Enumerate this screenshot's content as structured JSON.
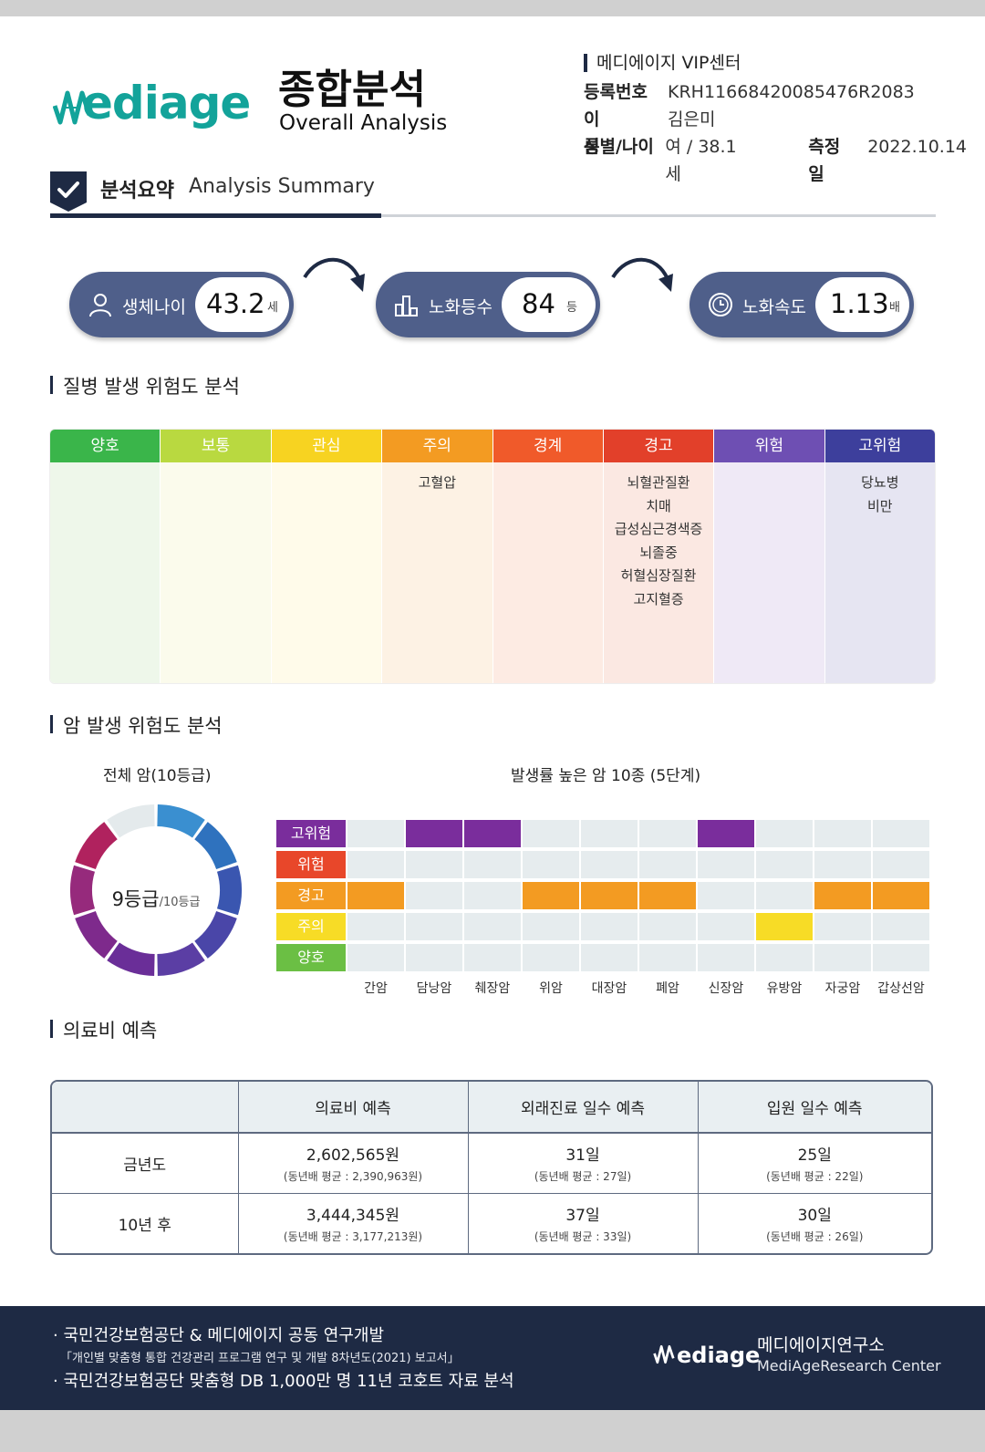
{
  "header": {
    "logo_text": "ediage",
    "title_kr": "종합분석",
    "title_en": "Overall Analysis",
    "center": "메디에이지 VIP센터",
    "reg_label": "등록번호",
    "reg_value": "KRH11668420085476R2083",
    "name_label": "이 름",
    "name_value": "김은미",
    "sexage_label": "성별/나이",
    "sexage_value": "여 / 38.1 세",
    "date_label": "측정일",
    "date_value": "2022.10.14"
  },
  "summary": {
    "title_kr": "분석요약",
    "title_en": "Analysis Summary",
    "bio_age_label": "생체나이",
    "bio_age_value": "43.2",
    "bio_age_unit": "세",
    "grade_label": "노화등수",
    "grade_value": "84",
    "grade_unit": "등",
    "speed_label": "노화속도",
    "speed_value": "1.13",
    "speed_unit": "배"
  },
  "disease": {
    "title": "질병 발생 위험도 분석",
    "columns": [
      {
        "label": "양호",
        "color": "#3ab54a",
        "bg": "#eef7ea",
        "items": []
      },
      {
        "label": "보통",
        "color": "#b9d940",
        "bg": "#fbfbec",
        "items": []
      },
      {
        "label": "관심",
        "color": "#f7d321",
        "bg": "#fffbea",
        "items": []
      },
      {
        "label": "주의",
        "color": "#f39b22",
        "bg": "#fdf2e4",
        "items": [
          "고혈압"
        ]
      },
      {
        "label": "경계",
        "color": "#f05a2a",
        "bg": "#fdebe3",
        "items": []
      },
      {
        "label": "경고",
        "color": "#e2402a",
        "bg": "#fbe8e2",
        "items": [
          "뇌혈관질환",
          "치매",
          "급성심근경색증",
          "뇌졸중",
          "허혈심장질환",
          "고지혈증"
        ]
      },
      {
        "label": "위험",
        "color": "#6e4fb3",
        "bg": "#efe9f6",
        "items": []
      },
      {
        "label": "고위험",
        "color": "#3d3f9c",
        "bg": "#e6e5f2",
        "items": [
          "당뇨병",
          "비만"
        ]
      }
    ]
  },
  "cancer": {
    "title": "암 발생 위험도 분석",
    "donut_title": "전체 암(10등급)",
    "donut_main": "9등급",
    "donut_sub": "/10등급",
    "grid_title": "발생률 높은 암 10종 (5단계)",
    "levels": [
      {
        "label": "고위험",
        "color": "#7a2d9c"
      },
      {
        "label": "위험",
        "color": "#e8472a"
      },
      {
        "label": "경고",
        "color": "#f39b22"
      },
      {
        "label": "주의",
        "color": "#f7dc26"
      },
      {
        "label": "양호",
        "color": "#6bbf44"
      }
    ],
    "cancers": [
      "간암",
      "담낭암",
      "췌장암",
      "위암",
      "대장암",
      "폐암",
      "신장암",
      "유방암",
      "자궁암",
      "갑상선암"
    ],
    "cancer_levels": [
      "경고",
      "고위험",
      "고위험",
      "경고",
      "경고",
      "경고",
      "고위험",
      "주의",
      "경고",
      "경고"
    ]
  },
  "cost": {
    "title": "의료비 예측",
    "headers": [
      "",
      "의료비 예측",
      "외래진료 일수 예측",
      "입원 일수 예측"
    ],
    "rows": [
      {
        "label": "금년도",
        "cells": [
          {
            "main": "2,602,565원",
            "sub": "(동년배 평균 : 2,390,963원)"
          },
          {
            "main": "31일",
            "sub": "(동년배 평균 : 27일)"
          },
          {
            "main": "25일",
            "sub": "(동년배 평균 : 22일)"
          }
        ]
      },
      {
        "label": "10년 후",
        "cells": [
          {
            "main": "3,444,345원",
            "sub": "(동년배 평균 : 3,177,213원)"
          },
          {
            "main": "37일",
            "sub": "(동년배 평균 : 33일)"
          },
          {
            "main": "30일",
            "sub": "(동년배 평균 : 26일)"
          }
        ]
      }
    ]
  },
  "footer": {
    "line1": "· 국민건강보험공단 & 메디에이지 공동 연구개발",
    "line2": "「개인별 맞춤형 통합 건강관리 프로그램 연구 및 개발 8차년도(2021) 보고서」",
    "line3": "· 국민건강보험공단 맞춤형 DB 1,000만 명 11년 코호트 자료 분석",
    "logo_text": "ediage",
    "org_kr": "메디에이지연구소",
    "org_en": "MediAgeResearch Center"
  }
}
